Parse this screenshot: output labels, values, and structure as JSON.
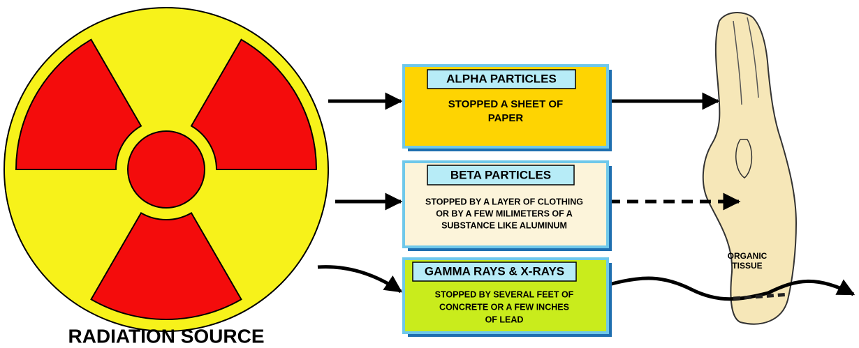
{
  "source": {
    "label": "RADIATION SOURCE"
  },
  "boxes": [
    {
      "title": "ALPHA PARTICLES",
      "lines": [
        "STOPPED A SHEET OF",
        "PAPER"
      ]
    },
    {
      "title": "BETA PARTICLES",
      "lines": [
        "STOPPED BY A LAYER OF CLOTHING",
        "OR BY A FEW MILIMETERS OF A",
        "SUBSTANCE LIKE ALUMINUM"
      ]
    },
    {
      "title": "GAMMA RAYS & X-RAYS",
      "lines": [
        "STOPPED BY SEVERAL FEET OF",
        "CONCRETE OR A FEW INCHES",
        "OF LEAD"
      ]
    }
  ],
  "tissue": {
    "lines": [
      "ORGANIC",
      "TISSUE"
    ]
  }
}
